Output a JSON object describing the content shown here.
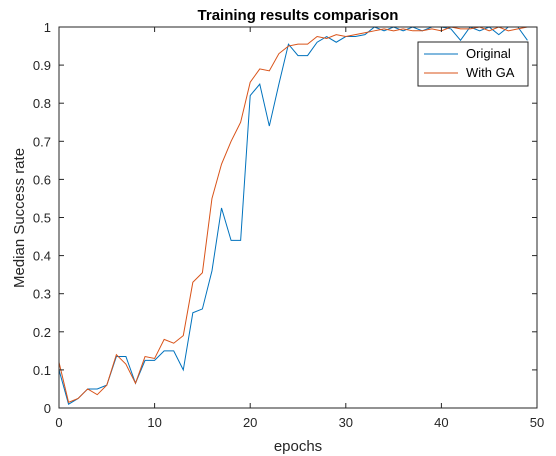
{
  "chart_data": {
    "type": "line",
    "title": "Training results comparison",
    "xlabel": "epochs",
    "ylabel": "Median Success rate",
    "xlim": [
      0,
      50
    ],
    "ylim": [
      0,
      1
    ],
    "xticks": [
      "0",
      "10",
      "20",
      "30",
      "40",
      "50"
    ],
    "yticks": [
      "0",
      "0.1",
      "0.2",
      "0.3",
      "0.4",
      "0.5",
      "0.6",
      "0.7",
      "0.8",
      "0.9",
      "1"
    ],
    "grid": false,
    "legend_position": "top-right",
    "x": [
      0,
      1,
      2,
      3,
      4,
      5,
      6,
      7,
      8,
      9,
      10,
      11,
      12,
      13,
      14,
      15,
      16,
      17,
      18,
      19,
      20,
      21,
      22,
      23,
      24,
      25,
      26,
      27,
      28,
      29,
      30,
      31,
      32,
      33,
      34,
      35,
      36,
      37,
      38,
      39,
      40,
      41,
      42,
      43,
      44,
      45,
      46,
      47,
      48,
      49
    ],
    "series": [
      {
        "name": "Original",
        "color": "#0072BD",
        "values": [
          0.1,
          0.01,
          0.025,
          0.05,
          0.05,
          0.06,
          0.135,
          0.135,
          0.065,
          0.125,
          0.125,
          0.15,
          0.15,
          0.1,
          0.25,
          0.26,
          0.36,
          0.525,
          0.44,
          0.44,
          0.82,
          0.85,
          0.74,
          0.85,
          0.955,
          0.925,
          0.925,
          0.96,
          0.975,
          0.96,
          0.975,
          0.975,
          0.98,
          1.0,
          0.99,
          1.0,
          0.99,
          1.0,
          0.99,
          1.0,
          1.0,
          0.995,
          0.965,
          1.0,
          0.99,
          1.0,
          0.98,
          1.0,
          1.0,
          0.965
        ]
      },
      {
        "name": "With GA",
        "color": "#D95319",
        "values": [
          0.12,
          0.015,
          0.025,
          0.05,
          0.035,
          0.06,
          0.14,
          0.115,
          0.065,
          0.135,
          0.13,
          0.18,
          0.17,
          0.19,
          0.33,
          0.355,
          0.55,
          0.64,
          0.7,
          0.75,
          0.855,
          0.89,
          0.885,
          0.93,
          0.95,
          0.955,
          0.955,
          0.975,
          0.97,
          0.98,
          0.975,
          0.98,
          0.985,
          0.99,
          0.995,
          0.99,
          0.995,
          0.99,
          0.99,
          0.995,
          0.99,
          1.0,
          0.995,
          0.995,
          1.0,
          0.99,
          1.0,
          0.99,
          0.995,
          1.0
        ]
      }
    ]
  }
}
